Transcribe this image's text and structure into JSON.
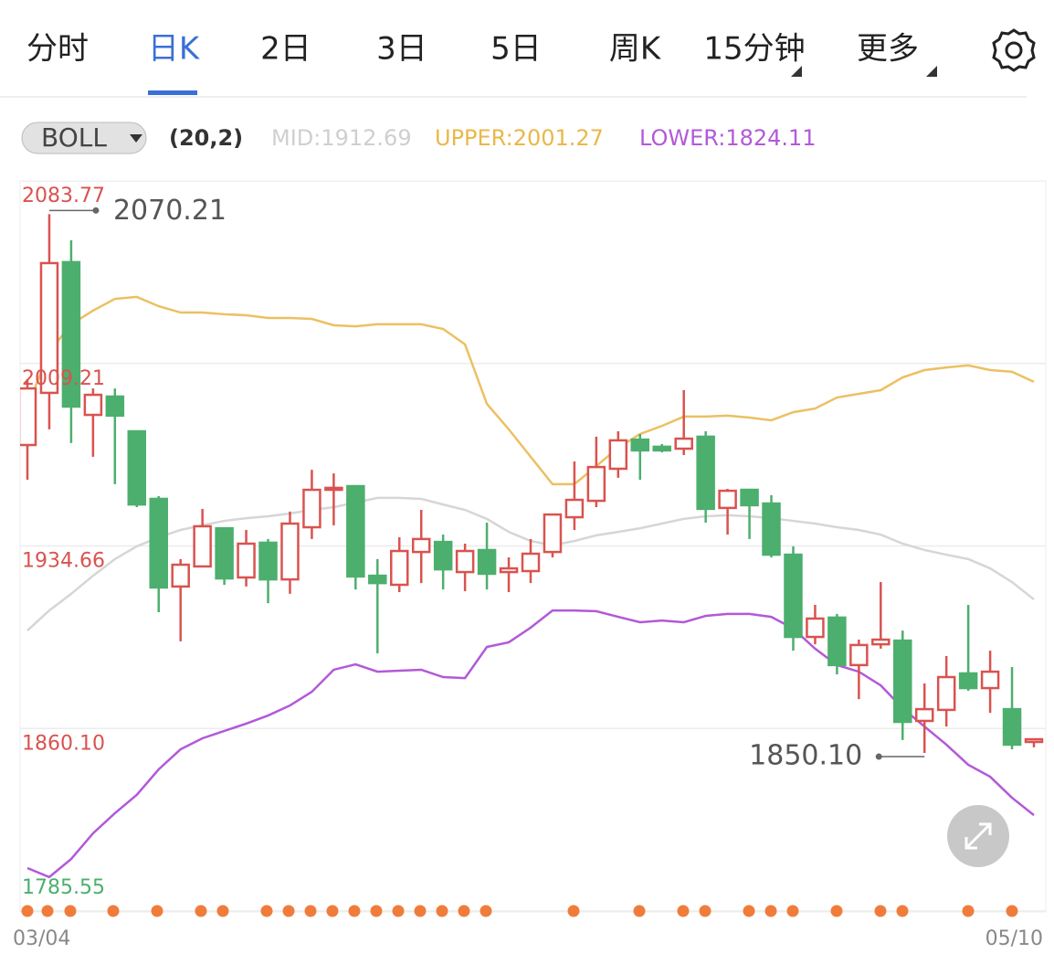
{
  "tabs": [
    "分时",
    "日K",
    "2日",
    "3日",
    "5日",
    "周K",
    "15分钟",
    "更多"
  ],
  "indicator": {
    "name": "BOLL",
    "params": "(20,2)",
    "mid": "MID:1912.69",
    "upper": "UPPER:2001.27",
    "lower": "LOWER:1824.11"
  },
  "chart_data": {
    "type": "candlestick",
    "categories": [
      "03/04",
      null,
      null,
      null,
      null,
      null,
      null,
      null,
      null,
      null,
      null,
      null,
      null,
      null,
      null,
      null,
      null,
      null,
      null,
      null,
      null,
      null,
      null,
      null,
      null,
      null,
      null,
      null,
      null,
      null,
      null,
      null,
      null,
      null,
      null,
      null,
      null,
      null,
      null,
      null,
      null,
      null,
      null,
      null,
      null,
      null,
      "05/10"
    ],
    "open": [
      1975.9,
      1997.2,
      2050.6,
      1988.2,
      1995.7,
      1981.5,
      1953.9,
      1918.1,
      1926.3,
      1941.9,
      1921.8,
      1936.0,
      1921.0,
      1942.3,
      1957.6,
      1959.1,
      1922.5,
      1918.8,
      1932.2,
      1936.3,
      1924.0,
      1933.0,
      1924.0,
      1924.4,
      1932.2,
      1946.4,
      1953.1,
      1966.2,
      1978.1,
      1975.2,
      1974.4,
      1979.3,
      1950.2,
      1957.6,
      1952.0,
      1931.1,
      1897.5,
      1905.4,
      1886.0,
      1894.5,
      1896.0,
      1863.2,
      1867.7,
      1882.6,
      1876.6,
      1868.0,
      1854.6
    ],
    "high": [
      2002.8,
      2070.21,
      2059.5,
      1999.0,
      1999.0,
      1981.5,
      1955.0,
      1929.3,
      1949.8,
      1941.9,
      1941.2,
      1937.5,
      1948.7,
      1965.8,
      1964.3,
      1959.1,
      1929.3,
      1938.2,
      1949.4,
      1939.3,
      1935.6,
      1944.2,
      1930.0,
      1937.5,
      1947.5,
      1969.2,
      1979.3,
      1981.5,
      1980.4,
      1976.3,
      1998.3,
      1981.5,
      1958.0,
      1958.0,
      1955.4,
      1934.5,
      1910.6,
      1906.9,
      1896.4,
      1919.9,
      1900.1,
      1878.5,
      1889.7,
      1910.6,
      1891.9,
      1885.2,
      1856.1
    ],
    "low": [
      1961.7,
      1982.3,
      1976.7,
      1971.1,
      1959.9,
      1950.5,
      1907.6,
      1895.7,
      1926.3,
      1918.8,
      1918.1,
      1911.3,
      1915.1,
      1937.5,
      1943.1,
      1916.9,
      1890.8,
      1915.8,
      1919.5,
      1916.9,
      1916.2,
      1916.9,
      1915.8,
      1919.5,
      1930.0,
      1941.2,
      1950.5,
      1962.5,
      1961.7,
      1972.9,
      1971.8,
      1944.2,
      1939.3,
      1937.5,
      1930.0,
      1891.9,
      1894.5,
      1882.2,
      1872.1,
      1892.7,
      1855.4,
      1850.1,
      1860.9,
      1875.5,
      1866.5,
      1851.6,
      1852.4
    ],
    "close": [
      1999.0,
      2050.2,
      1991.6,
      1996.4,
      1987.9,
      1951.6,
      1917.7,
      1927.0,
      1942.7,
      1921.4,
      1935.6,
      1921.0,
      1943.8,
      1957.6,
      1958.4,
      1922.2,
      1919.5,
      1932.6,
      1937.5,
      1925.1,
      1932.6,
      1923.3,
      1925.5,
      1931.5,
      1947.5,
      1953.5,
      1966.9,
      1977.8,
      1973.7,
      1973.7,
      1978.5,
      1949.8,
      1957.2,
      1951.3,
      1931.1,
      1897.5,
      1905.0,
      1886.0,
      1894.2,
      1896.4,
      1862.8,
      1868.0,
      1881.1,
      1876.6,
      1883.3,
      1853.5,
      1855.7
    ],
    "up_color": "#d9534f",
    "down_color": "#4caf6e",
    "series": [
      {
        "name": "UPPER",
        "color": "#ecc062",
        "values": [
          1991.6,
          2014.0,
          2025.2,
          2030.8,
          2035.6,
          2036.4,
          2032.6,
          2030.0,
          2030.0,
          2029.3,
          2028.9,
          2027.8,
          2027.8,
          2027.4,
          2024.8,
          2024.4,
          2025.2,
          2025.2,
          2025.2,
          2023.3,
          2017.0,
          1992.7,
          1982.3,
          1971.1,
          1959.9,
          1959.9,
          1967.3,
          1974.8,
          1980.4,
          1983.7,
          1987.5,
          1987.5,
          1987.9,
          1987.1,
          1986.0,
          1989.3,
          1990.8,
          1995.3,
          1996.8,
          1998.3,
          2003.5,
          2006.5,
          2007.6,
          2008.4,
          2006.5,
          2005.8,
          2001.7
        ]
      },
      {
        "name": "MID",
        "color": "#d6d6d6",
        "values": [
          1900.1,
          1908.3,
          1915.1,
          1922.5,
          1929.3,
          1934.5,
          1938.2,
          1941.2,
          1943.1,
          1944.9,
          1946.0,
          1946.8,
          1947.9,
          1949.4,
          1950.5,
          1952.4,
          1954.3,
          1954.3,
          1953.9,
          1951.6,
          1949.4,
          1945.7,
          1940.4,
          1936.7,
          1934.9,
          1936.7,
          1939.0,
          1940.4,
          1941.9,
          1943.8,
          1945.7,
          1946.8,
          1947.2,
          1946.8,
          1946.0,
          1944.9,
          1943.8,
          1942.3,
          1941.2,
          1939.3,
          1935.6,
          1933.0,
          1931.1,
          1929.3,
          1925.5,
          1919.9,
          1912.8
        ]
      },
      {
        "name": "LOWER",
        "color": "#b259d8",
        "values": [
          1803.1,
          1799.4,
          1806.8,
          1817.3,
          1825.5,
          1833.0,
          1843.4,
          1851.6,
          1856.1,
          1859.1,
          1862.1,
          1865.4,
          1869.5,
          1875.1,
          1884.1,
          1886.3,
          1883.3,
          1883.7,
          1884.1,
          1881.1,
          1880.7,
          1893.4,
          1895.3,
          1901.3,
          1908.3,
          1908.3,
          1908.0,
          1905.7,
          1903.5,
          1904.2,
          1903.5,
          1906.1,
          1906.9,
          1906.9,
          1905.7,
          1900.9,
          1892.7,
          1886.0,
          1883.3,
          1877.7,
          1868.4,
          1860.9,
          1853.5,
          1845.3,
          1840.4,
          1831.8,
          1824.7
        ]
      }
    ],
    "ylim": [
      1785.55,
      2083.77
    ],
    "yticks": [
      1785.55,
      {
        "value": 1860.1,
        "label": "1860.10"
      },
      1934.66,
      2009.21,
      2083.77
    ],
    "high_label": "2070.21",
    "low_label": "1850.10",
    "grid": true
  }
}
